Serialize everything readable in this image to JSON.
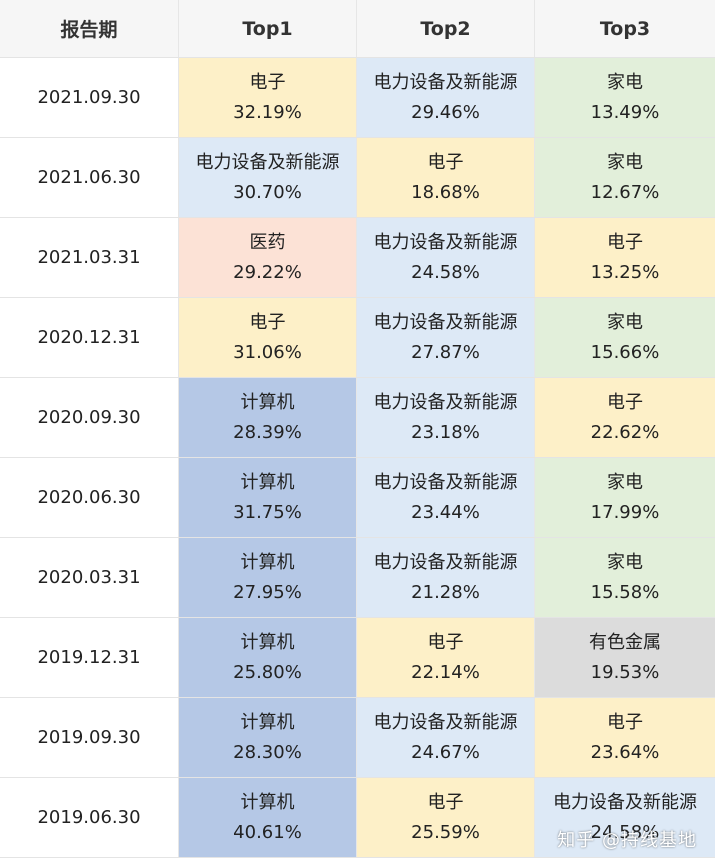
{
  "colors": {
    "电子": "#fdf0c8",
    "电力设备及新能源": "#dde9f6",
    "家电": "#e2efda",
    "医药": "#fce2d6",
    "计算机": "#b5c8e6",
    "有色金属": "#dcdcdc"
  },
  "header": {
    "date": "报告期",
    "top1": "Top1",
    "top2": "Top2",
    "top3": "Top3"
  },
  "rows": [
    {
      "date": "2021.09.30",
      "cells": [
        {
          "industry": "电子",
          "pct": "32.19%"
        },
        {
          "industry": "电力设备及新能源",
          "pct": "29.46%"
        },
        {
          "industry": "家电",
          "pct": "13.49%"
        }
      ]
    },
    {
      "date": "2021.06.30",
      "cells": [
        {
          "industry": "电力设备及新能源",
          "pct": "30.70%"
        },
        {
          "industry": "电子",
          "pct": "18.68%"
        },
        {
          "industry": "家电",
          "pct": "12.67%"
        }
      ]
    },
    {
      "date": "2021.03.31",
      "cells": [
        {
          "industry": "医药",
          "pct": "29.22%"
        },
        {
          "industry": "电力设备及新能源",
          "pct": "24.58%"
        },
        {
          "industry": "电子",
          "pct": "13.25%"
        }
      ]
    },
    {
      "date": "2020.12.31",
      "cells": [
        {
          "industry": "电子",
          "pct": "31.06%"
        },
        {
          "industry": "电力设备及新能源",
          "pct": "27.87%"
        },
        {
          "industry": "家电",
          "pct": "15.66%"
        }
      ]
    },
    {
      "date": "2020.09.30",
      "cells": [
        {
          "industry": "计算机",
          "pct": "28.39%"
        },
        {
          "industry": "电力设备及新能源",
          "pct": "23.18%"
        },
        {
          "industry": "电子",
          "pct": "22.62%"
        }
      ]
    },
    {
      "date": "2020.06.30",
      "cells": [
        {
          "industry": "计算机",
          "pct": "31.75%"
        },
        {
          "industry": "电力设备及新能源",
          "pct": "23.44%"
        },
        {
          "industry": "家电",
          "pct": "17.99%"
        }
      ]
    },
    {
      "date": "2020.03.31",
      "cells": [
        {
          "industry": "计算机",
          "pct": "27.95%"
        },
        {
          "industry": "电力设备及新能源",
          "pct": "21.28%"
        },
        {
          "industry": "家电",
          "pct": "15.58%"
        }
      ]
    },
    {
      "date": "2019.12.31",
      "cells": [
        {
          "industry": "计算机",
          "pct": "25.80%"
        },
        {
          "industry": "电子",
          "pct": "22.14%"
        },
        {
          "industry": "有色金属",
          "pct": "19.53%"
        }
      ]
    },
    {
      "date": "2019.09.30",
      "cells": [
        {
          "industry": "计算机",
          "pct": "28.30%"
        },
        {
          "industry": "电力设备及新能源",
          "pct": "24.67%"
        },
        {
          "industry": "电子",
          "pct": "23.64%"
        }
      ]
    },
    {
      "date": "2019.06.30",
      "cells": [
        {
          "industry": "计算机",
          "pct": "40.61%"
        },
        {
          "industry": "电子",
          "pct": "25.59%"
        },
        {
          "industry": "电力设备及新能源",
          "pct": "24.58%"
        }
      ]
    }
  ],
  "watermark": "知乎 @持线基地"
}
